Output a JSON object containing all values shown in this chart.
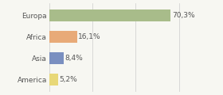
{
  "categories": [
    "Europa",
    "Africa",
    "Asia",
    "America"
  ],
  "values": [
    70.3,
    16.1,
    8.4,
    5.2
  ],
  "labels": [
    "70,3%",
    "16,1%",
    "8,4%",
    "5,2%"
  ],
  "bar_colors": [
    "#a8bc8a",
    "#e8aa78",
    "#7a8fc0",
    "#e8d878"
  ],
  "xlim": [
    0,
    85
  ],
  "background_color": "#f7f7f2",
  "label_fontsize": 6.5,
  "tick_fontsize": 6.5,
  "bar_height": 0.55
}
